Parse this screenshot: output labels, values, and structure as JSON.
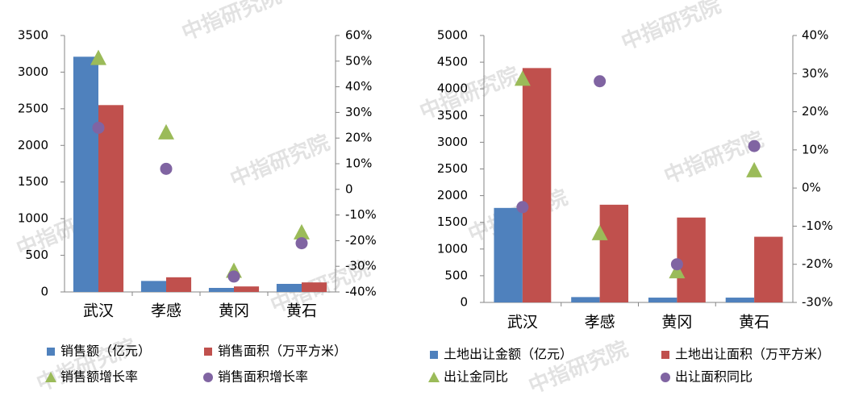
{
  "watermark": "中指研究院",
  "colors": {
    "blue": "#4f81bd",
    "red": "#c0504d",
    "green": "#9bbb59",
    "purple": "#8064a2",
    "axis": "#868686"
  },
  "chart_data": [
    {
      "type": "bar",
      "categories": [
        "武汉",
        "孝感",
        "黄冈",
        "黄石"
      ],
      "y_ticks": [
        "0",
        "500",
        "1000",
        "1500",
        "2000",
        "2500",
        "3000",
        "3500"
      ],
      "y2_ticks": [
        "-40%",
        "-30%",
        "-20%",
        "-10%",
        "0",
        "10%",
        "20%",
        "30%",
        "40%",
        "50%",
        "60%"
      ],
      "ylim": [
        0,
        3500
      ],
      "y2lim": [
        -40,
        60
      ],
      "grid": false,
      "legend_position": "bottom",
      "series": [
        {
          "name": "销售额（亿元）",
          "kind": "bar",
          "axis": "left",
          "color": "#4f81bd",
          "values": [
            3210,
            150,
            55,
            110
          ]
        },
        {
          "name": "销售面积（万平方米）",
          "kind": "bar",
          "axis": "left",
          "color": "#c0504d",
          "values": [
            2550,
            200,
            75,
            130
          ]
        },
        {
          "name": "销售额增长率",
          "kind": "triangle",
          "axis": "right",
          "color": "#9bbb59",
          "values": [
            51,
            22,
            -32,
            -17
          ]
        },
        {
          "name": "销售面积增长率",
          "kind": "circle",
          "axis": "right",
          "color": "#8064a2",
          "values": [
            24,
            8,
            -34,
            -21
          ]
        }
      ]
    },
    {
      "type": "bar",
      "categories": [
        "武汉",
        "孝感",
        "黄冈",
        "黄石"
      ],
      "y_ticks": [
        "0",
        "500",
        "1000",
        "1500",
        "2000",
        "2500",
        "3000",
        "3500",
        "4000",
        "4500",
        "5000"
      ],
      "y2_ticks": [
        "-30%",
        "-20%",
        "-10%",
        "0%",
        "10%",
        "20%",
        "30%",
        "40%"
      ],
      "ylim": [
        0,
        5000
      ],
      "y2lim": [
        -30,
        40
      ],
      "grid": false,
      "legend_position": "bottom",
      "series": [
        {
          "name": "土地出让金额（亿元）",
          "kind": "bar",
          "axis": "left",
          "color": "#4f81bd",
          "values": [
            1770,
            100,
            90,
            90
          ]
        },
        {
          "name": "土地出让面积（万平方米）",
          "kind": "bar",
          "axis": "left",
          "color": "#c0504d",
          "values": [
            4390,
            1830,
            1590,
            1230
          ]
        },
        {
          "name": "出让金同比",
          "kind": "triangle",
          "axis": "right",
          "color": "#9bbb59",
          "values": [
            28.5,
            -12,
            -22,
            4.5
          ]
        },
        {
          "name": "出让面积同比",
          "kind": "circle",
          "axis": "right",
          "color": "#8064a2",
          "values": [
            -5,
            28,
            -20,
            11
          ]
        }
      ]
    }
  ]
}
